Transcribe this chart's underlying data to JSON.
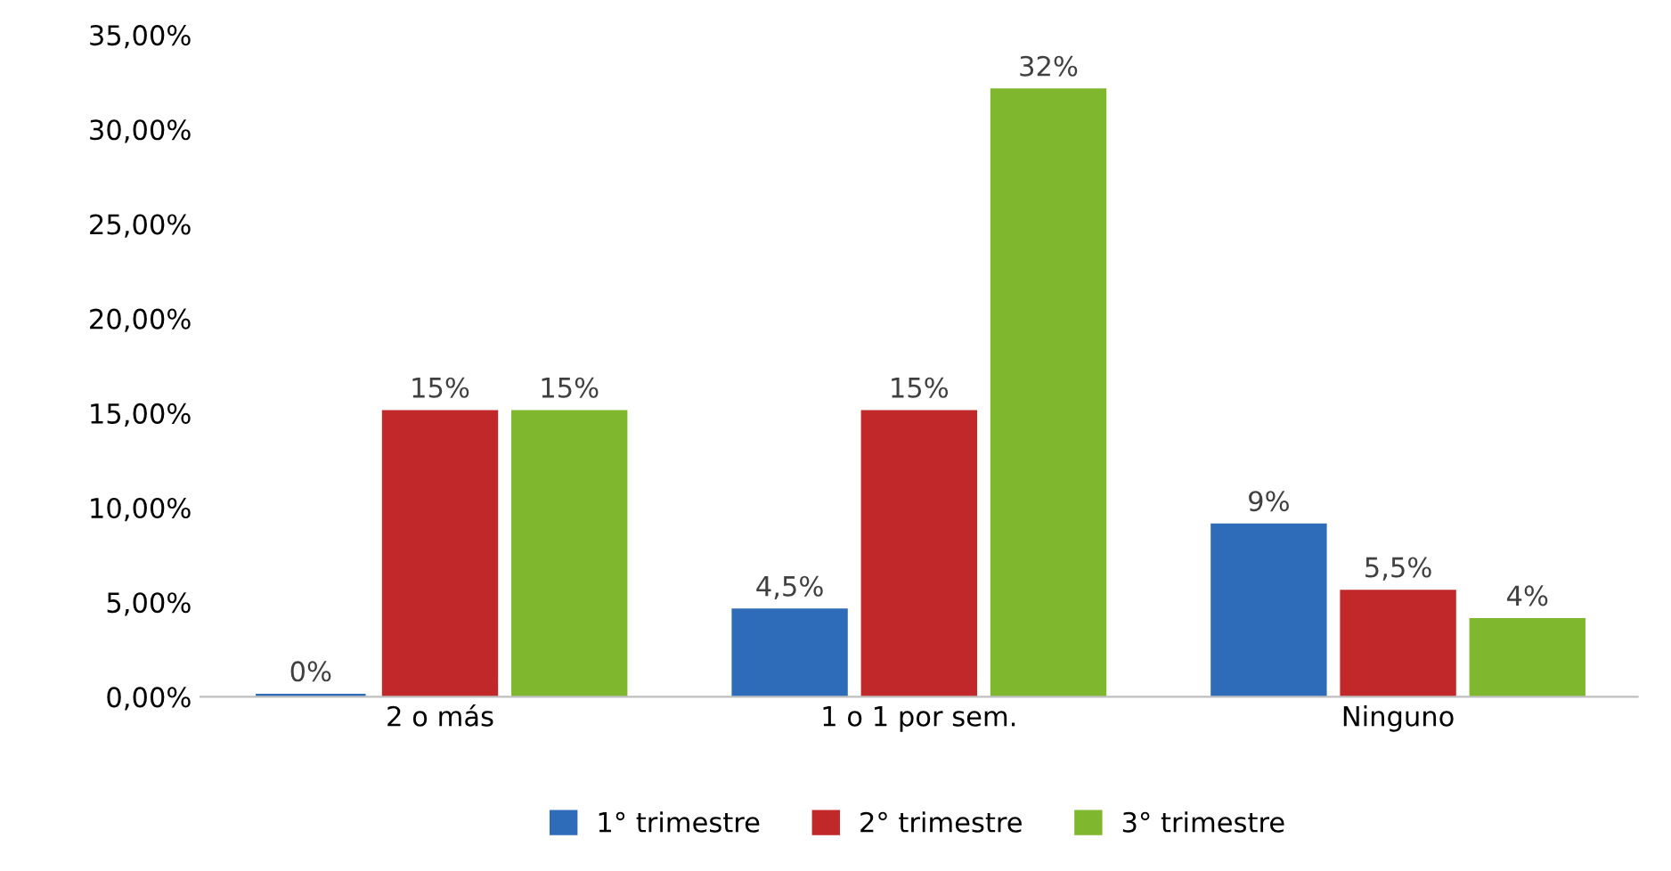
{
  "chart_data": {
    "type": "bar",
    "categories": [
      "2 o más",
      "1 o 1 por sem.",
      "Ninguno"
    ],
    "series": [
      {
        "name": "1° trimestre",
        "color": "#2e6bb8",
        "values": [
          0,
          4.5,
          9
        ],
        "value_labels": [
          "0%",
          "4,5%",
          "9%"
        ]
      },
      {
        "name": "2° trimestre",
        "color": "#c0282a",
        "values": [
          15,
          15,
          5.5
        ],
        "value_labels": [
          "15%",
          "15%",
          "5,5%"
        ]
      },
      {
        "name": "3° trimestre",
        "color": "#7fb82e",
        "values": [
          15,
          32,
          4
        ],
        "value_labels": [
          "15%",
          "32%",
          "4%"
        ]
      }
    ],
    "ylim": [
      0,
      35
    ],
    "yticks": [
      {
        "value": 0,
        "label": "0,00%"
      },
      {
        "value": 5,
        "label": "5,00%"
      },
      {
        "value": 10,
        "label": "10,00%"
      },
      {
        "value": 15,
        "label": "15,00%"
      },
      {
        "value": 20,
        "label": "20,00%"
      },
      {
        "value": 25,
        "label": "25,00%"
      },
      {
        "value": 30,
        "label": "30,00%"
      },
      {
        "value": 35,
        "label": "35,00%"
      }
    ],
    "grid": false,
    "legend": "bottom"
  }
}
